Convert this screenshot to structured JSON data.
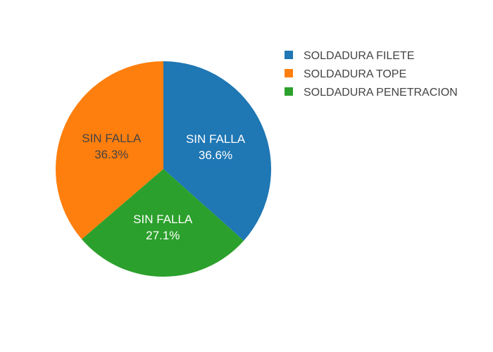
{
  "chart_data": {
    "type": "pie",
    "slices": [
      {
        "legend": "SOLDADURA FILETE",
        "text": "SIN FALLA",
        "percent": "36.6%",
        "value": 36.6,
        "color": "#1f77b4",
        "label_color": "#ffffff"
      },
      {
        "legend": "SOLDADURA TOPE",
        "text": "SIN FALLA",
        "percent": "36.3%",
        "value": 36.3,
        "color": "#ff7f0e",
        "label_color": "#444444"
      },
      {
        "legend": "SOLDADURA PENETRACION",
        "text": "SIN FALLA",
        "percent": "27.1%",
        "value": 27.1,
        "color": "#2ca02c",
        "label_color": "#ffffff"
      }
    ],
    "order": [
      0,
      2,
      1
    ],
    "start_angle_deg": 90,
    "direction": "clockwise",
    "legend_position": "top-right"
  }
}
